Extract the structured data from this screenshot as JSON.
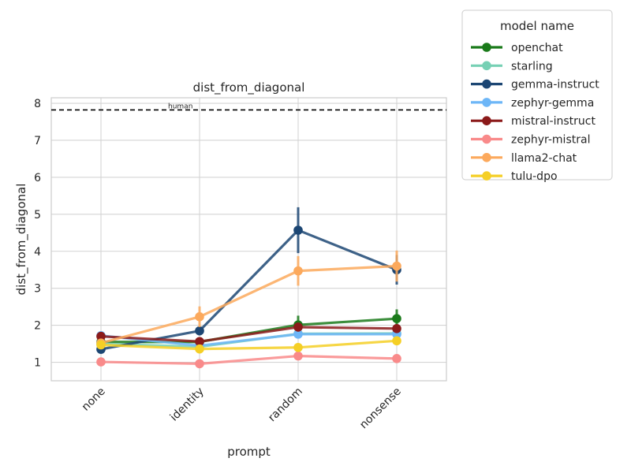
{
  "chart_data": {
    "type": "line",
    "title": "dist_from_diagonal",
    "xlabel": "prompt",
    "ylabel": "dist_from_diagonal",
    "categories": [
      "none",
      "identity",
      "random",
      "nonsense"
    ],
    "yticks": [
      1,
      2,
      3,
      4,
      5,
      6,
      7,
      8
    ],
    "ylim": [
      0.5,
      8.15
    ],
    "grid": true,
    "legend_title": "model name",
    "legend_position": "outside-top-right",
    "reference_line": {
      "label": "human",
      "value": 7.82
    },
    "series": [
      {
        "name": "openchat",
        "color": "#1a7a1a",
        "values": [
          1.55,
          1.55,
          2.01,
          2.18
        ],
        "err": [
          0.07,
          0.08,
          0.25,
          0.25
        ]
      },
      {
        "name": "starling",
        "color": "#76d0b4",
        "values": [
          1.5,
          1.42,
          1.77,
          1.78
        ],
        "err": [
          0.06,
          0.06,
          0.08,
          0.08
        ]
      },
      {
        "name": "gemma-instruct",
        "color": "#1c4673",
        "values": [
          1.35,
          1.85,
          4.57,
          3.5
        ],
        "err": [
          0.08,
          0.12,
          0.62,
          0.4
        ]
      },
      {
        "name": "zephyr-gemma",
        "color": "#6db6f7",
        "values": [
          1.72,
          1.45,
          1.76,
          1.76
        ],
        "err": [
          0.08,
          0.07,
          0.1,
          0.1
        ]
      },
      {
        "name": "mistral-instruct",
        "color": "#8b1a1a",
        "values": [
          1.7,
          1.56,
          1.95,
          1.91
        ],
        "err": [
          0.1,
          0.08,
          0.12,
          0.1
        ]
      },
      {
        "name": "zephyr-mistral",
        "color": "#f98a8a",
        "values": [
          1.01,
          0.96,
          1.17,
          1.1
        ],
        "err": [
          0.05,
          0.06,
          0.08,
          0.1
        ]
      },
      {
        "name": "llama2-chat",
        "color": "#fca95c",
        "values": [
          1.52,
          2.23,
          3.47,
          3.6
        ],
        "err": [
          0.08,
          0.28,
          0.4,
          0.42
        ]
      },
      {
        "name": "tulu-dpo",
        "color": "#f5cf25",
        "values": [
          1.47,
          1.36,
          1.4,
          1.58
        ],
        "err": [
          0.06,
          0.07,
          0.08,
          0.12
        ]
      }
    ]
  }
}
